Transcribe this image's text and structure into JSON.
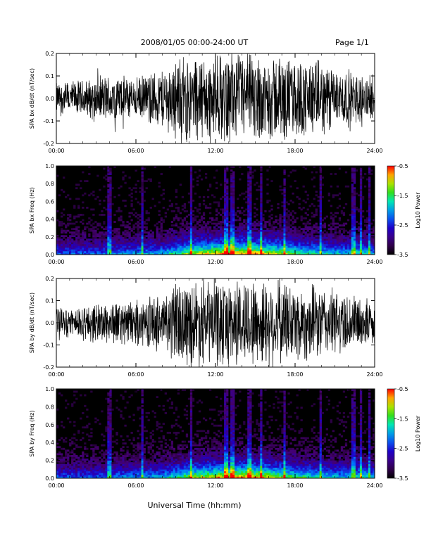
{
  "header": {
    "title": "2008/01/05  00:00-24:00 UT",
    "page": "Page 1/1"
  },
  "xaxis_label": "Universal Time (hh:mm)",
  "chart_data": [
    {
      "type": "line",
      "ylabel": "SPA bx dB/dt (nT/sec)",
      "xlim": [
        "00:00",
        "24:00"
      ],
      "ylim": [
        -0.2,
        0.2
      ],
      "x_ticks": [
        "00:00",
        "06:00",
        "12:00",
        "18:00",
        "24:00"
      ],
      "y_ticks": [
        "-0.2",
        "-0.1",
        "0.0",
        "0.1",
        "0.2"
      ],
      "envelope_hours": [
        0,
        2,
        4,
        6,
        8,
        9,
        10,
        12,
        14,
        15,
        16,
        18,
        20,
        22,
        24
      ],
      "envelope_amplitude": [
        0.08,
        0.09,
        0.12,
        0.1,
        0.15,
        0.2,
        0.22,
        0.22,
        0.22,
        0.22,
        0.22,
        0.2,
        0.18,
        0.14,
        0.1
      ]
    },
    {
      "type": "heatmap",
      "ylabel": "SPA bx Freq (Hz)",
      "xlim": [
        "00:00",
        "24:00"
      ],
      "ylim": [
        0.0,
        1.0
      ],
      "x_ticks": [
        "00:00",
        "06:00",
        "12:00",
        "18:00",
        "24:00"
      ],
      "y_ticks": [
        "0.0",
        "0.2",
        "0.4",
        "0.6",
        "0.8",
        "1.0"
      ],
      "colorbar": {
        "label": "Log10 Power",
        "ticks": [
          "-0.5",
          "-1.5",
          "-2.5",
          "-3.5"
        ],
        "range": [
          -3.5,
          -0.5
        ]
      }
    },
    {
      "type": "line",
      "ylabel": "SPA by dB/dt (nT/sec)",
      "xlim": [
        "00:00",
        "24:00"
      ],
      "ylim": [
        -0.2,
        0.2
      ],
      "x_ticks": [
        "00:00",
        "06:00",
        "12:00",
        "18:00",
        "24:00"
      ],
      "y_ticks": [
        "-0.2",
        "-0.1",
        "0.0",
        "0.1",
        "0.2"
      ],
      "envelope_hours": [
        0,
        2,
        4,
        6,
        8,
        9,
        10,
        12,
        14,
        15,
        16,
        18,
        20,
        22,
        24
      ],
      "envelope_amplitude": [
        0.07,
        0.09,
        0.11,
        0.11,
        0.15,
        0.2,
        0.22,
        0.22,
        0.22,
        0.22,
        0.22,
        0.2,
        0.18,
        0.15,
        0.1
      ]
    },
    {
      "type": "heatmap",
      "ylabel": "SPA by Freq (Hz)",
      "xlim": [
        "00:00",
        "24:00"
      ],
      "ylim": [
        0.0,
        1.0
      ],
      "x_ticks": [
        "00:00",
        "06:00",
        "12:00",
        "18:00",
        "24:00"
      ],
      "y_ticks": [
        "0.0",
        "0.2",
        "0.4",
        "0.6",
        "0.8",
        "1.0"
      ],
      "colorbar": {
        "label": "Log10 Power",
        "ticks": [
          "-0.5",
          "-1.5",
          "-2.5",
          "-3.5"
        ],
        "range": [
          -3.5,
          -0.5
        ]
      }
    }
  ]
}
